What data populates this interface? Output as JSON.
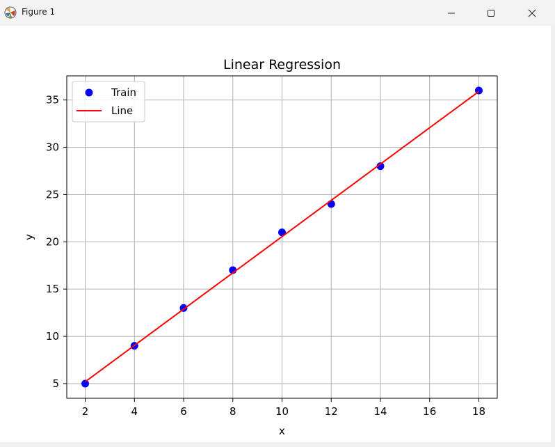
{
  "window": {
    "title": "Figure 1"
  },
  "chart_data": {
    "type": "scatter",
    "title": "Linear Regression",
    "xlabel": "x",
    "ylabel": "y",
    "xlim": [
      1.25,
      18.75
    ],
    "ylim": [
      3.45,
      37.55
    ],
    "xticks": [
      2,
      4,
      6,
      8,
      10,
      12,
      14,
      16,
      18
    ],
    "yticks": [
      5,
      10,
      15,
      20,
      25,
      30,
      35
    ],
    "grid": true,
    "legend_position": "top-left",
    "series": [
      {
        "name": "Train",
        "kind": "scatter",
        "color": "#0000ff",
        "x": [
          2,
          4,
          6,
          8,
          10,
          12,
          14,
          18
        ],
        "y": [
          5,
          9,
          13,
          17,
          21,
          24,
          28,
          36
        ]
      },
      {
        "name": "Line",
        "kind": "line",
        "color": "#ff0000",
        "x": [
          2,
          18
        ],
        "y": [
          5.2,
          35.9
        ]
      }
    ]
  }
}
